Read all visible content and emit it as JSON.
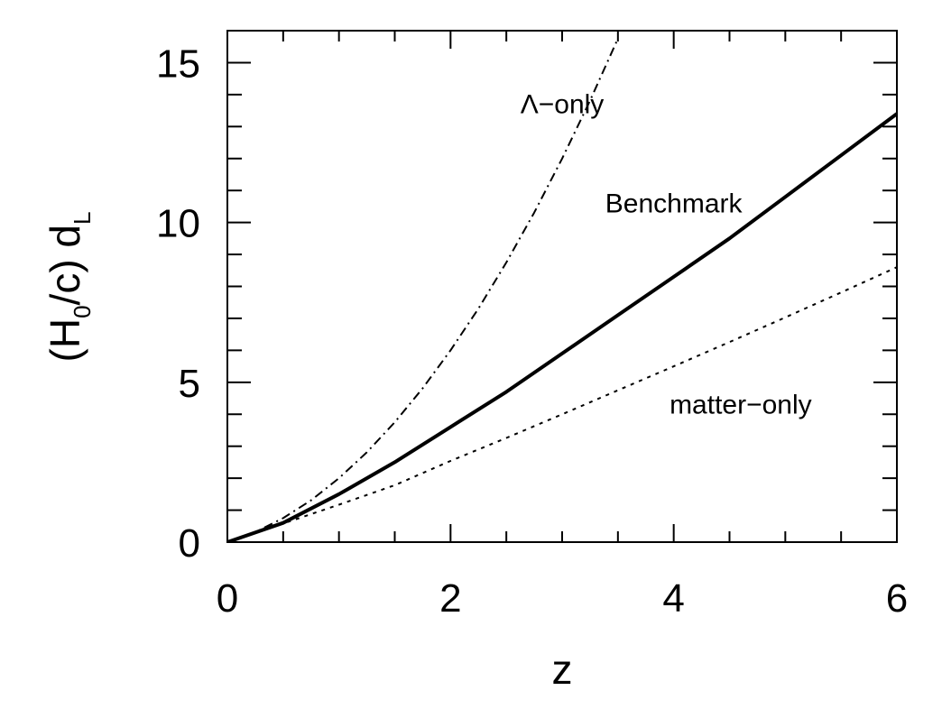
{
  "chart_data": {
    "type": "line",
    "xlabel": "z",
    "ylabel": {
      "main": "(H",
      "sub0": "0",
      "mid": "/c) d",
      "subL": "L"
    },
    "xlim": [
      0,
      6
    ],
    "ylim": [
      0,
      16
    ],
    "x_ticks": [
      "0",
      "2",
      "4",
      "6"
    ],
    "y_ticks": [
      "0",
      "5",
      "10",
      "15"
    ],
    "grid": false,
    "series": [
      {
        "name": "Λ−only",
        "style": "dashdot",
        "x": [
          0,
          0.25,
          0.5,
          0.75,
          1.0,
          1.25,
          1.5,
          1.75,
          2.0,
          2.25,
          2.5,
          2.75,
          3.0,
          3.25,
          3.5
        ],
        "y": [
          0,
          0.31,
          0.75,
          1.31,
          2.0,
          2.81,
          3.75,
          4.81,
          6.0,
          7.31,
          8.75,
          10.31,
          12.0,
          13.81,
          15.75
        ]
      },
      {
        "name": "Benchmark",
        "style": "solid",
        "x": [
          0,
          0.5,
          1.0,
          1.5,
          2.0,
          2.5,
          3.0,
          3.5,
          4.0,
          4.5,
          5.0,
          5.5,
          6.0
        ],
        "y": [
          0,
          0.6,
          1.5,
          2.5,
          3.6,
          4.7,
          5.9,
          7.1,
          8.3,
          9.5,
          10.8,
          12.1,
          13.4
        ]
      },
      {
        "name": "matter−only",
        "style": "dotted",
        "x": [
          0,
          0.5,
          1.0,
          1.5,
          2.0,
          2.5,
          3.0,
          3.5,
          4.0,
          4.5,
          5.0,
          5.5,
          6.0
        ],
        "y": [
          0,
          0.58,
          1.17,
          1.78,
          2.54,
          3.26,
          4.0,
          4.75,
          5.5,
          6.26,
          7.03,
          7.81,
          8.6
        ]
      }
    ],
    "annotations": [
      {
        "text": "Λ−only",
        "x": 3.0,
        "y": 13.7
      },
      {
        "text": "Benchmark",
        "x": 4.0,
        "y": 10.6
      },
      {
        "text": "matter−only",
        "x": 4.6,
        "y": 4.3
      }
    ]
  }
}
